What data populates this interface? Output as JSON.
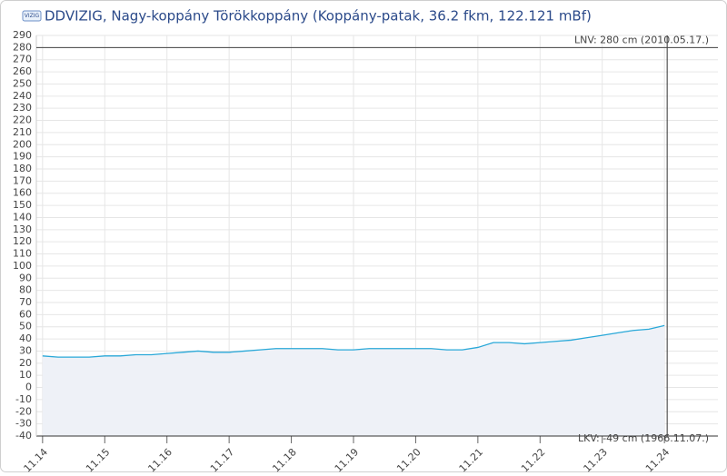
{
  "chart_data": {
    "type": "line",
    "logo_text": "VIZIG",
    "title": "DDVIZIG, Nagy-koppány Törökkoppány (Koppány-patak, 36.2 fkm, 122.121 mBf)",
    "x": [
      14.0,
      14.25,
      14.5,
      14.75,
      15.0,
      15.25,
      15.5,
      15.75,
      16.0,
      16.25,
      16.5,
      16.75,
      17.0,
      17.25,
      17.5,
      17.75,
      18.0,
      18.25,
      18.5,
      18.75,
      19.0,
      19.25,
      19.5,
      19.75,
      20.0,
      20.25,
      20.5,
      20.75,
      21.0,
      21.25,
      21.5,
      21.75,
      22.0,
      22.25,
      22.5,
      22.75,
      23.0,
      23.25,
      23.5,
      23.75,
      24.0
    ],
    "series": [
      {
        "color": "#29a8d8",
        "values": [
          26,
          25,
          25,
          25,
          26,
          26,
          27,
          27,
          28,
          29,
          30,
          29,
          29,
          30,
          31,
          32,
          32,
          32,
          32,
          31,
          31,
          32,
          32,
          32,
          32,
          32,
          31,
          31,
          33,
          37,
          37,
          36,
          37,
          38,
          39,
          41,
          43,
          45,
          47,
          48,
          51
        ]
      }
    ],
    "xlim": [
      13.9,
      24.86
    ],
    "xticks": [
      {
        "value": 14,
        "label": "11.14"
      },
      {
        "value": 15,
        "label": "11.15"
      },
      {
        "value": 16,
        "label": "11.16"
      },
      {
        "value": 17,
        "label": "11.17"
      },
      {
        "value": 18,
        "label": "11.18"
      },
      {
        "value": 19,
        "label": "11.19"
      },
      {
        "value": 20,
        "label": "11.20"
      },
      {
        "value": 21,
        "label": "11.21"
      },
      {
        "value": 22,
        "label": "11.22"
      },
      {
        "value": 23,
        "label": "11.23"
      },
      {
        "value": 24,
        "label": "11.24"
      }
    ],
    "ylim": [
      -40,
      290
    ],
    "yticks": [
      -40,
      -30,
      -20,
      -10,
      0,
      10,
      20,
      30,
      40,
      50,
      60,
      70,
      80,
      90,
      100,
      110,
      120,
      130,
      140,
      150,
      160,
      170,
      180,
      190,
      200,
      210,
      220,
      230,
      240,
      250,
      260,
      270,
      280,
      290
    ],
    "grid": true,
    "reference_lines": [
      {
        "value": 280,
        "label": "LNV: 280 cm (2010.05.17.)"
      },
      {
        "value": -49,
        "label": "LKV: -49 cm (1966.11.07.)"
      }
    ]
  }
}
